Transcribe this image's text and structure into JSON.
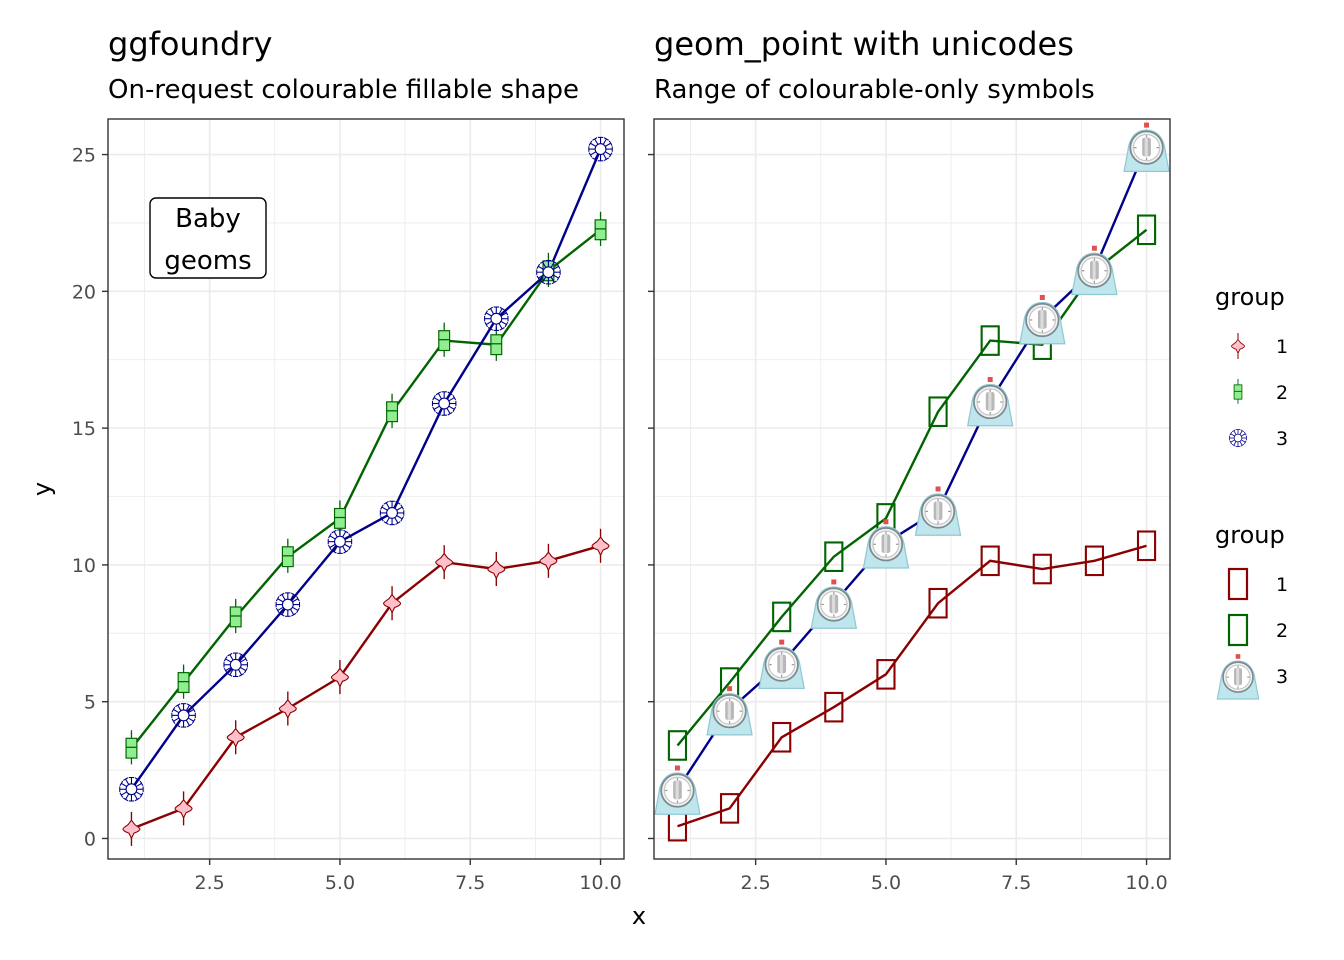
{
  "colors": {
    "1": {
      "line": "#8b0000",
      "fill": "#ffc0cb"
    },
    "2": {
      "line": "#006400",
      "fill": "#90ee90"
    },
    "3": {
      "line": "#00008b",
      "fill": "#ffffff"
    }
  },
  "chart_data": [
    {
      "type": "line",
      "title": "ggfoundry",
      "subtitle": "On-request colourable fillable shape",
      "xlabel": "x",
      "ylabel": "y",
      "xlim": [
        0.55,
        10.45
      ],
      "ylim": [
        -0.75,
        26.3
      ],
      "x_ticks": [
        2.5,
        5.0,
        7.5,
        10.0
      ],
      "x_tick_labels": [
        "2.5",
        "5.0",
        "7.5",
        "10.0"
      ],
      "y_ticks": [
        0,
        5,
        10,
        15,
        20,
        25
      ],
      "y_tick_labels": [
        "0",
        "5",
        "10",
        "15",
        "20",
        "25"
      ],
      "grid": true,
      "annotation": {
        "lines": [
          "Baby",
          "geoms"
        ],
        "x": 2.0,
        "y": 22.0
      },
      "x": [
        1,
        2,
        3,
        4,
        5,
        6,
        7,
        8,
        9,
        10
      ],
      "series": [
        {
          "name": "1",
          "shape": "violin",
          "values": [
            0.35,
            1.1,
            3.7,
            4.75,
            5.9,
            8.6,
            10.1,
            9.85,
            10.15,
            10.7
          ]
        },
        {
          "name": "2",
          "shape": "boxplot",
          "values": [
            3.3,
            5.7,
            8.1,
            10.3,
            11.7,
            15.6,
            18.2,
            18.05,
            20.75,
            22.25
          ]
        },
        {
          "name": "3",
          "shape": "burst",
          "values": [
            1.8,
            4.5,
            6.35,
            8.55,
            10.85,
            11.9,
            15.9,
            19.0,
            20.7,
            25.2
          ]
        }
      ]
    },
    {
      "type": "line",
      "title": "geom_point with unicodes",
      "subtitle": "Range of colourable-only symbols",
      "xlabel": "x",
      "ylabel": "",
      "xlim": [
        0.55,
        10.45
      ],
      "ylim": [
        -0.75,
        26.3
      ],
      "x_ticks": [
        2.5,
        5.0,
        7.5,
        10.0
      ],
      "x_tick_labels": [
        "2.5",
        "5.0",
        "7.5",
        "10.0"
      ],
      "grid": true,
      "x": [
        1,
        2,
        3,
        4,
        5,
        6,
        7,
        8,
        9,
        10
      ],
      "series": [
        {
          "name": "1",
          "shape": "rectangle",
          "values": [
            0.45,
            1.1,
            3.7,
            4.8,
            6.0,
            8.6,
            10.15,
            9.85,
            10.15,
            10.7
          ]
        },
        {
          "name": "2",
          "shape": "rectangle",
          "values": [
            3.4,
            5.7,
            8.1,
            10.3,
            11.7,
            15.6,
            18.2,
            18.05,
            20.75,
            22.25
          ]
        },
        {
          "name": "3",
          "shape": "timer",
          "values": [
            1.8,
            4.7,
            6.4,
            8.6,
            10.8,
            12.0,
            16.0,
            19.0,
            20.8,
            25.3
          ]
        }
      ]
    }
  ],
  "legends": [
    {
      "title": "group",
      "keys": [
        {
          "label": "1",
          "shape": "violin",
          "group": "1"
        },
        {
          "label": "2",
          "shape": "boxplot",
          "group": "2"
        },
        {
          "label": "3",
          "shape": "burst",
          "group": "3"
        }
      ]
    },
    {
      "title": "group",
      "keys": [
        {
          "label": "1",
          "shape": "rectangle",
          "group": "1"
        },
        {
          "label": "2",
          "shape": "rectangle",
          "group": "2"
        },
        {
          "label": "3",
          "shape": "timer",
          "group": "3"
        }
      ]
    }
  ]
}
